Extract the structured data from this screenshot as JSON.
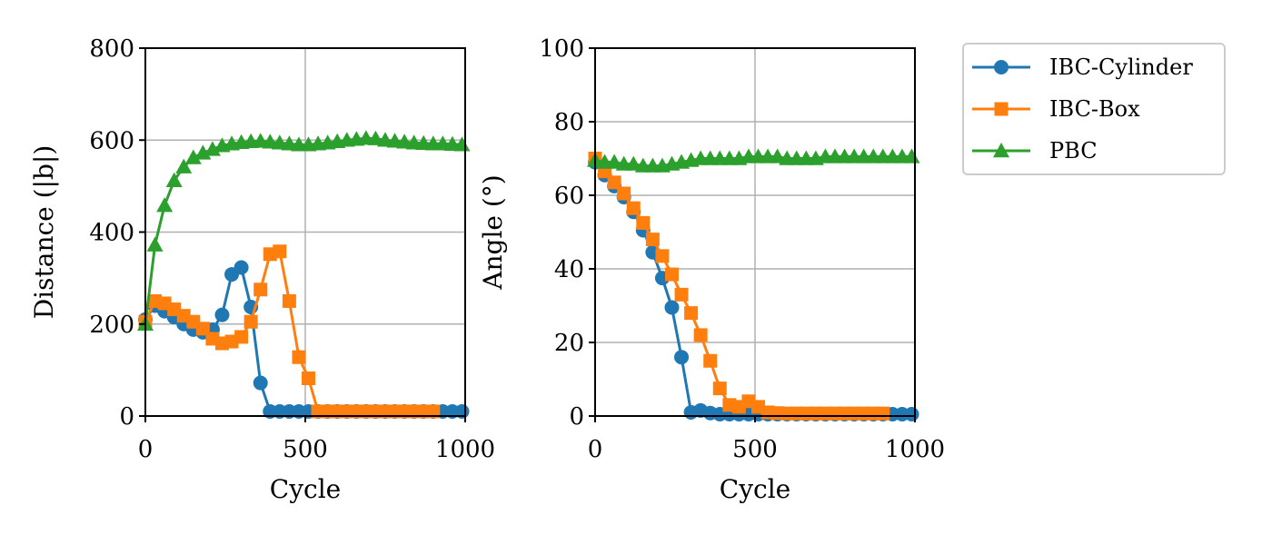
{
  "legend": {
    "entries": [
      {
        "label": "IBC-Cylinder",
        "color": "#1f77b4",
        "marker": "circle"
      },
      {
        "label": "IBC-Box",
        "color": "#ff7f0e",
        "marker": "square"
      },
      {
        "label": "PBC",
        "color": "#2ca02c",
        "marker": "triangle"
      }
    ]
  },
  "chart_data": [
    {
      "type": "line",
      "xlabel": "Cycle",
      "ylabel": "Distance (|b|)",
      "xlim": [
        0,
        1000
      ],
      "ylim": [
        0,
        800
      ],
      "xticks": [
        0,
        500,
        1000
      ],
      "yticks": [
        0,
        200,
        400,
        600,
        800
      ],
      "grid": true,
      "x": [
        0,
        30,
        60,
        90,
        120,
        150,
        180,
        210,
        240,
        270,
        300,
        330,
        360,
        390,
        420,
        450,
        480,
        510,
        540,
        570,
        600,
        630,
        660,
        690,
        720,
        750,
        780,
        810,
        840,
        870,
        900,
        930,
        960,
        990
      ],
      "series": [
        {
          "name": "IBC-Cylinder",
          "color": "#1f77b4",
          "marker": "circle",
          "values": [
            210,
            240,
            228,
            215,
            200,
            188,
            182,
            188,
            220,
            308,
            323,
            237,
            72,
            10,
            10,
            10,
            10,
            10,
            10,
            10,
            10,
            10,
            10,
            10,
            10,
            10,
            10,
            10,
            10,
            10,
            10,
            10,
            10,
            10
          ]
        },
        {
          "name": "IBC-Box",
          "color": "#ff7f0e",
          "marker": "square",
          "x": [
            0,
            30,
            60,
            90,
            120,
            150,
            180,
            210,
            240,
            270,
            300,
            330,
            360,
            390,
            420,
            450,
            480,
            510,
            540,
            570,
            600,
            630,
            660,
            690,
            720,
            750,
            780,
            810,
            840,
            870,
            900
          ],
          "values": [
            205,
            250,
            245,
            232,
            218,
            205,
            190,
            168,
            158,
            162,
            172,
            205,
            275,
            352,
            358,
            250,
            128,
            82,
            10,
            10,
            10,
            10,
            10,
            10,
            10,
            10,
            10,
            10,
            10,
            10,
            10
          ]
        },
        {
          "name": "PBC",
          "color": "#2ca02c",
          "marker": "triangle",
          "values": [
            200,
            372,
            458,
            512,
            542,
            562,
            572,
            580,
            588,
            592,
            595,
            597,
            598,
            596,
            594,
            592,
            590,
            590,
            592,
            594,
            597,
            600,
            602,
            604,
            603,
            600,
            598,
            596,
            594,
            593,
            592,
            592,
            591,
            590
          ]
        }
      ]
    },
    {
      "type": "line",
      "xlabel": "Cycle",
      "ylabel": "Angle (°)",
      "xlim": [
        0,
        1000
      ],
      "ylim": [
        0,
        100
      ],
      "xticks": [
        0,
        500,
        1000
      ],
      "yticks": [
        0,
        20,
        40,
        60,
        80,
        100
      ],
      "grid": true,
      "x": [
        0,
        30,
        60,
        90,
        120,
        150,
        180,
        210,
        240,
        270,
        300,
        330,
        360,
        390,
        420,
        450,
        480,
        510,
        540,
        570,
        600,
        630,
        660,
        690,
        720,
        750,
        780,
        810,
        840,
        870,
        900,
        930,
        960,
        990
      ],
      "series": [
        {
          "name": "IBC-Cylinder",
          "color": "#1f77b4",
          "marker": "circle",
          "values": [
            69,
            65.5,
            62.5,
            59.5,
            55.5,
            50.5,
            44.5,
            37.5,
            29.5,
            16,
            1,
            1.5,
            0.8,
            0.5,
            0.5,
            0.5,
            0.5,
            0.5,
            0.5,
            0.5,
            0.5,
            0.5,
            0.5,
            0.5,
            0.5,
            0.5,
            0.5,
            0.5,
            0.5,
            0.5,
            0.5,
            0.5,
            0.5,
            0.5
          ]
        },
        {
          "name": "IBC-Box",
          "color": "#ff7f0e",
          "marker": "square",
          "x": [
            0,
            30,
            60,
            90,
            120,
            150,
            180,
            210,
            240,
            270,
            300,
            330,
            360,
            390,
            420,
            450,
            480,
            510,
            540,
            570,
            600,
            630,
            660,
            690,
            720,
            750,
            780,
            810,
            840,
            870,
            900
          ],
          "values": [
            70,
            66.5,
            63.5,
            60.5,
            56.5,
            52.5,
            48,
            43.5,
            38.5,
            33,
            28,
            22,
            15,
            7.5,
            3,
            2.5,
            4,
            2.5,
            1,
            0.8,
            0.7,
            0.7,
            0.7,
            0.7,
            0.7,
            0.7,
            0.7,
            0.7,
            0.7,
            0.7,
            0.7
          ]
        },
        {
          "name": "PBC",
          "color": "#2ca02c",
          "marker": "triangle",
          "values": [
            69.5,
            69,
            69,
            68.5,
            68.5,
            68,
            68,
            68,
            68.5,
            69,
            69.5,
            70,
            70,
            70,
            70,
            70,
            70.5,
            70.5,
            70.5,
            70.5,
            70,
            70,
            70,
            70,
            70.5,
            70.5,
            70.5,
            70.5,
            70.5,
            70.5,
            70.5,
            70.5,
            70.5,
            70.5
          ]
        }
      ]
    }
  ]
}
